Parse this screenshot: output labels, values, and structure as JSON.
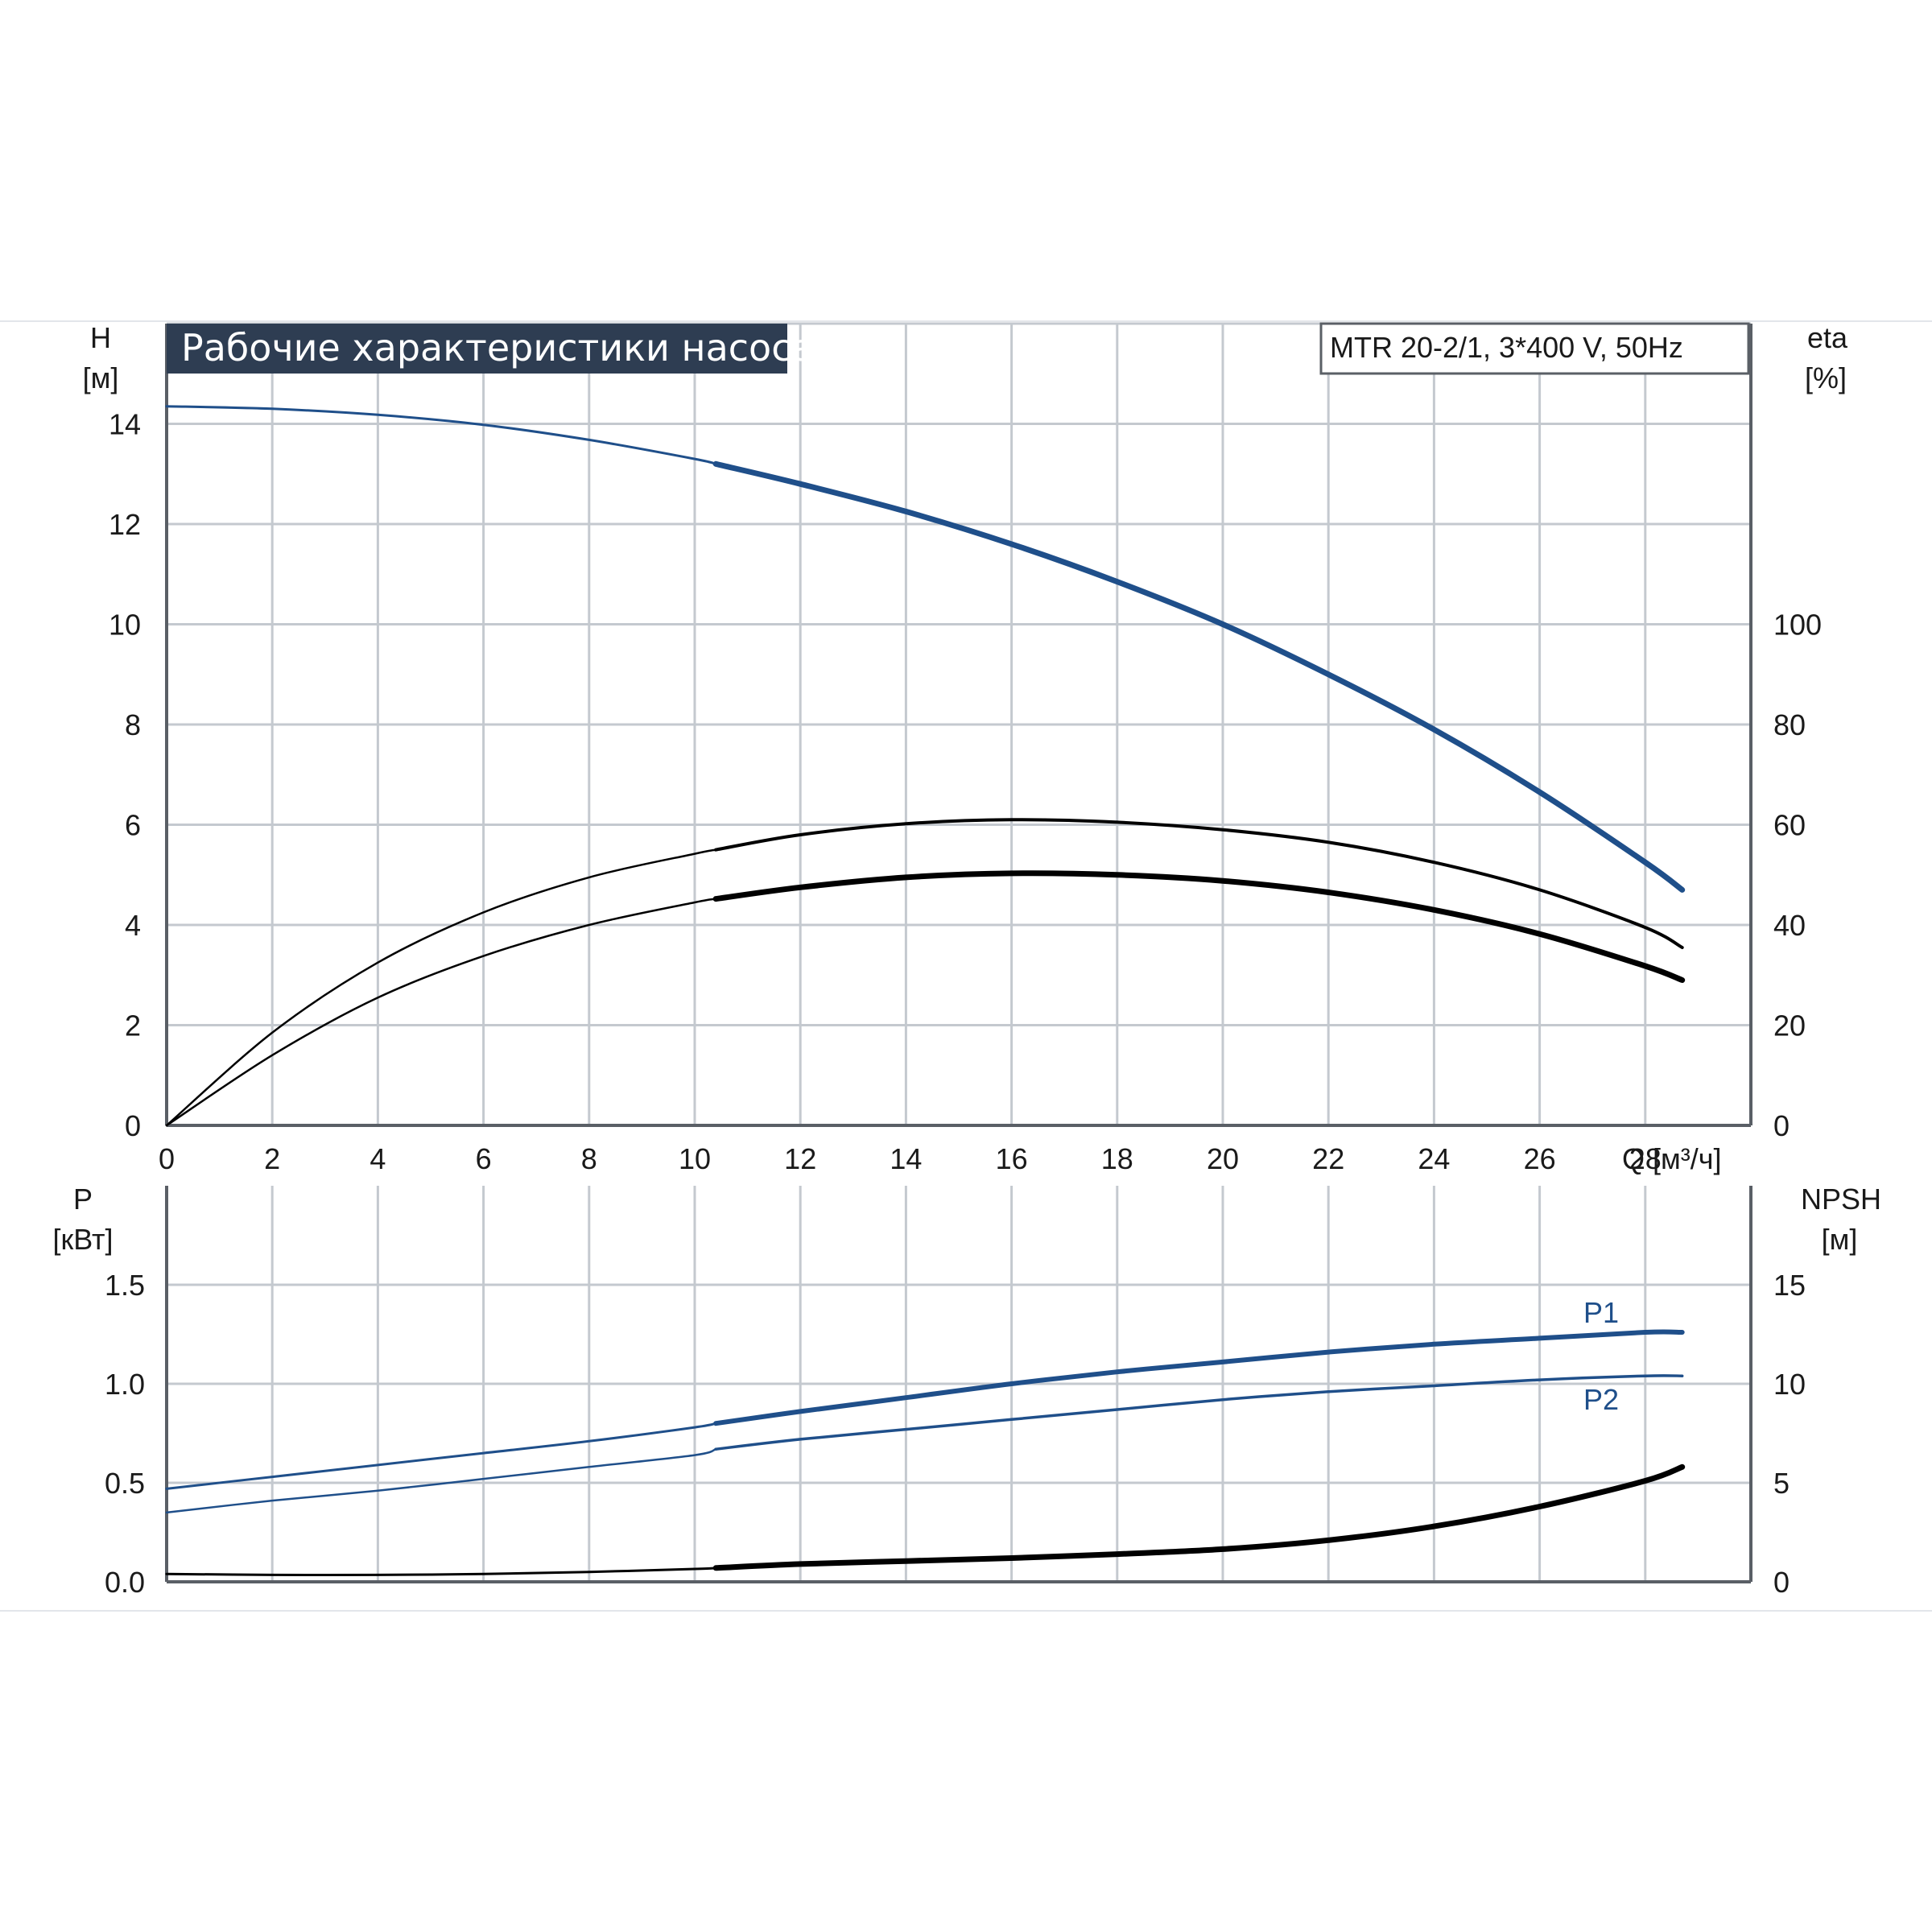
{
  "chart_data": [
    {
      "type": "line",
      "title": "Рабочие характеристики насоса",
      "subtitle": "MTR 20-2/1, 3*400 V, 50Hz",
      "xlabel": "Q [м³/ч]",
      "ylabel": [
        "H",
        "[м]"
      ],
      "y2label": [
        "eta",
        "[%]"
      ],
      "xlim": [
        0,
        30
      ],
      "ylim": [
        0,
        16
      ],
      "y2lim": [
        0,
        160
      ],
      "x_ticks": [
        "0",
        "2",
        "4",
        "6",
        "8",
        "10",
        "12",
        "14",
        "16",
        "18",
        "20",
        "22",
        "24",
        "26",
        "28"
      ],
      "y_ticks": [
        "0",
        "2",
        "4",
        "6",
        "8",
        "10",
        "12",
        "14"
      ],
      "y2_ticks": [
        "0",
        "20",
        "40",
        "60",
        "80",
        "100"
      ],
      "grid": true,
      "series": [
        {
          "name": "H",
          "axis": "left",
          "color": "#1f4f8a",
          "x": [
            0,
            2,
            4,
            6,
            8,
            10,
            10.4,
            12,
            14,
            16,
            18,
            20,
            22,
            24,
            26,
            28,
            28.7
          ],
          "y": [
            14.35,
            14.3,
            14.18,
            13.98,
            13.68,
            13.3,
            13.2,
            12.8,
            12.25,
            11.6,
            10.85,
            10.0,
            9.0,
            7.9,
            6.65,
            5.25,
            4.7
          ]
        },
        {
          "name": "eta P1",
          "axis": "right",
          "color": "#000000",
          "x": [
            0,
            2,
            4,
            6,
            8,
            10,
            10.4,
            12,
            14,
            16,
            18,
            20,
            22,
            24,
            26,
            28,
            28.7
          ],
          "y": [
            0,
            18.5,
            32.5,
            42.5,
            49.5,
            54.2,
            55,
            58,
            60.2,
            61,
            60.5,
            59,
            56.5,
            52.5,
            47,
            39.5,
            35.5
          ]
        },
        {
          "name": "eta P2",
          "axis": "right",
          "color": "#000000",
          "x": [
            0,
            2,
            4,
            6,
            8,
            10,
            10.4,
            12,
            14,
            16,
            18,
            20,
            22,
            24,
            26,
            28,
            28.7
          ],
          "y": [
            0,
            14,
            25.5,
            33.8,
            40,
            44.5,
            45.2,
            47.5,
            49.5,
            50.3,
            50,
            48.8,
            46.5,
            43,
            38.2,
            31.8,
            29
          ]
        }
      ]
    },
    {
      "type": "line",
      "xlim": [
        0,
        30
      ],
      "ylabel": [
        "P",
        "[кВт]"
      ],
      "y2label": [
        "NPSH",
        "[м]"
      ],
      "ylim": [
        0,
        2
      ],
      "y2lim": [
        0,
        20
      ],
      "y_ticks": [
        "0.0",
        "0.5",
        "1.0",
        "1.5"
      ],
      "y2_ticks": [
        "0",
        "5",
        "10",
        "15"
      ],
      "grid": true,
      "series": [
        {
          "name": "P1",
          "axis": "left",
          "color": "#1f4f8a",
          "x": [
            0,
            2,
            4,
            6,
            8,
            10,
            10.4,
            12,
            14,
            16,
            18,
            20,
            22,
            24,
            26,
            28,
            28.7
          ],
          "y": [
            0.47,
            0.53,
            0.59,
            0.65,
            0.71,
            0.78,
            0.8,
            0.86,
            0.93,
            1.0,
            1.06,
            1.11,
            1.16,
            1.2,
            1.23,
            1.26,
            1.26
          ]
        },
        {
          "name": "P2",
          "axis": "left",
          "color": "#1f4f8a",
          "x": [
            0,
            2,
            4,
            6,
            8,
            10,
            10.4,
            12,
            14,
            16,
            18,
            20,
            22,
            24,
            26,
            28,
            28.7
          ],
          "y": [
            0.35,
            0.41,
            0.46,
            0.52,
            0.58,
            0.64,
            0.67,
            0.72,
            0.77,
            0.82,
            0.87,
            0.92,
            0.96,
            0.99,
            1.02,
            1.04,
            1.04
          ]
        },
        {
          "name": "NPSH",
          "axis": "right",
          "color": "#000000",
          "x": [
            0,
            2,
            4,
            6,
            8,
            10,
            10.4,
            12,
            14,
            16,
            18,
            20,
            22,
            24,
            26,
            28,
            28.7
          ],
          "y": [
            0.4,
            0.35,
            0.35,
            0.4,
            0.5,
            0.65,
            0.7,
            0.9,
            1.05,
            1.2,
            1.4,
            1.65,
            2.1,
            2.8,
            3.8,
            5.1,
            5.8
          ]
        }
      ],
      "labels": [
        "P1",
        "P2"
      ]
    }
  ]
}
